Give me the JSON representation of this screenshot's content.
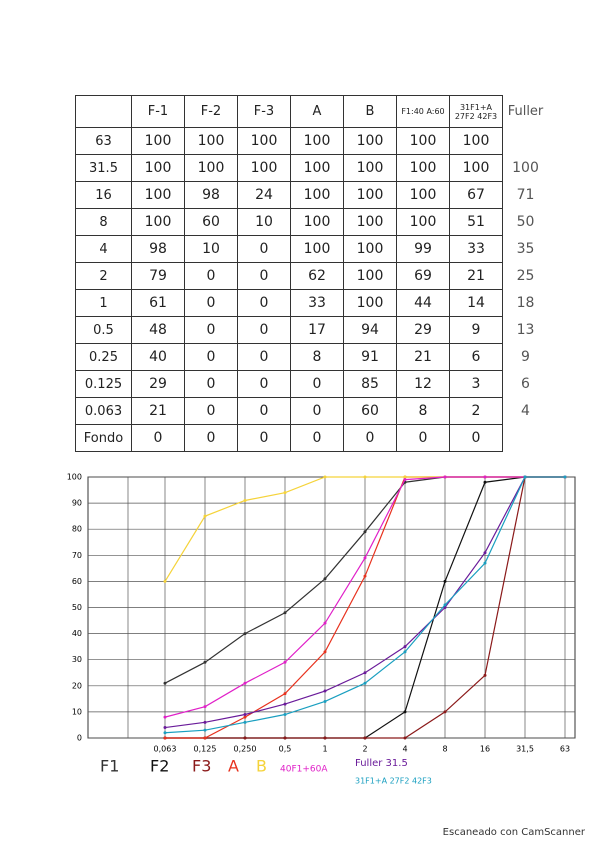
{
  "table": {
    "header": [
      "F-1",
      "F-2",
      "F-3",
      "A",
      "B",
      "F1:40 A:60",
      "31F1+A 27F2 42F3",
      "Fuller"
    ],
    "rows": [
      {
        "label": "63",
        "values": [
          100,
          100,
          100,
          100,
          100,
          100,
          100,
          null
        ]
      },
      {
        "label": "31.5",
        "values": [
          100,
          100,
          100,
          100,
          100,
          100,
          100,
          100
        ]
      },
      {
        "label": "16",
        "values": [
          100,
          98,
          24,
          100,
          100,
          100,
          67,
          71
        ]
      },
      {
        "label": "8",
        "values": [
          100,
          60,
          10,
          100,
          100,
          100,
          51,
          50
        ]
      },
      {
        "label": "4",
        "values": [
          98,
          10,
          0,
          100,
          100,
          99,
          33,
          35
        ]
      },
      {
        "label": "2",
        "values": [
          79,
          0,
          0,
          62,
          100,
          69,
          21,
          25
        ]
      },
      {
        "label": "1",
        "values": [
          61,
          0,
          0,
          33,
          100,
          44,
          14,
          18
        ]
      },
      {
        "label": "0.5",
        "values": [
          48,
          0,
          0,
          17,
          94,
          29,
          9,
          13
        ]
      },
      {
        "label": "0.25",
        "values": [
          40,
          0,
          0,
          8,
          91,
          21,
          6,
          9
        ]
      },
      {
        "label": "0.125",
        "values": [
          29,
          0,
          0,
          0,
          85,
          12,
          3,
          6
        ]
      },
      {
        "label": "0.063",
        "values": [
          21,
          0,
          0,
          0,
          60,
          8,
          2,
          4
        ]
      },
      {
        "label": "Fondo",
        "values": [
          0,
          0,
          0,
          0,
          0,
          0,
          0,
          null
        ]
      }
    ]
  },
  "chart_data": {
    "type": "line",
    "categories": [
      "0,063",
      "0,125",
      "0,250",
      "0,5",
      "1",
      "2",
      "4",
      "8",
      "16",
      "31,5",
      "63"
    ],
    "ylim": [
      0,
      100
    ],
    "yticks": [
      0,
      10,
      20,
      30,
      40,
      50,
      60,
      70,
      80,
      90,
      100
    ],
    "grid": true,
    "series": [
      {
        "name": "F1",
        "color": "#333333",
        "values": [
          21,
          29,
          40,
          48,
          61,
          79,
          98,
          100,
          100,
          100,
          100
        ]
      },
      {
        "name": "F2",
        "color": "#111111",
        "values": [
          0,
          0,
          0,
          0,
          0,
          0,
          10,
          60,
          98,
          100,
          100
        ]
      },
      {
        "name": "F3",
        "color": "#8b1a1a",
        "values": [
          0,
          0,
          0,
          0,
          0,
          0,
          0,
          10,
          24,
          100,
          100
        ]
      },
      {
        "name": "A",
        "color": "#e8321e",
        "values": [
          0,
          0,
          8,
          17,
          33,
          62,
          100,
          100,
          100,
          100,
          100
        ]
      },
      {
        "name": "B",
        "color": "#f5d33a",
        "values": [
          60,
          85,
          91,
          94,
          100,
          100,
          100,
          100,
          100,
          100,
          100
        ]
      },
      {
        "name": "40F1+60A",
        "color": "#e020c8",
        "values": [
          8,
          12,
          21,
          29,
          44,
          69,
          99,
          100,
          100,
          100,
          100
        ]
      },
      {
        "name": "Fuller 31.5",
        "color": "#6a1b9a",
        "values": [
          4,
          6,
          9,
          13,
          18,
          25,
          35,
          50,
          71,
          100,
          null
        ]
      },
      {
        "name": "31F1+A 27F2 42F3",
        "color": "#1a9fc0",
        "values": [
          2,
          3,
          6,
          9,
          14,
          21,
          33,
          51,
          67,
          100,
          100
        ]
      }
    ]
  },
  "footer": "Escaneado con CamScanner"
}
